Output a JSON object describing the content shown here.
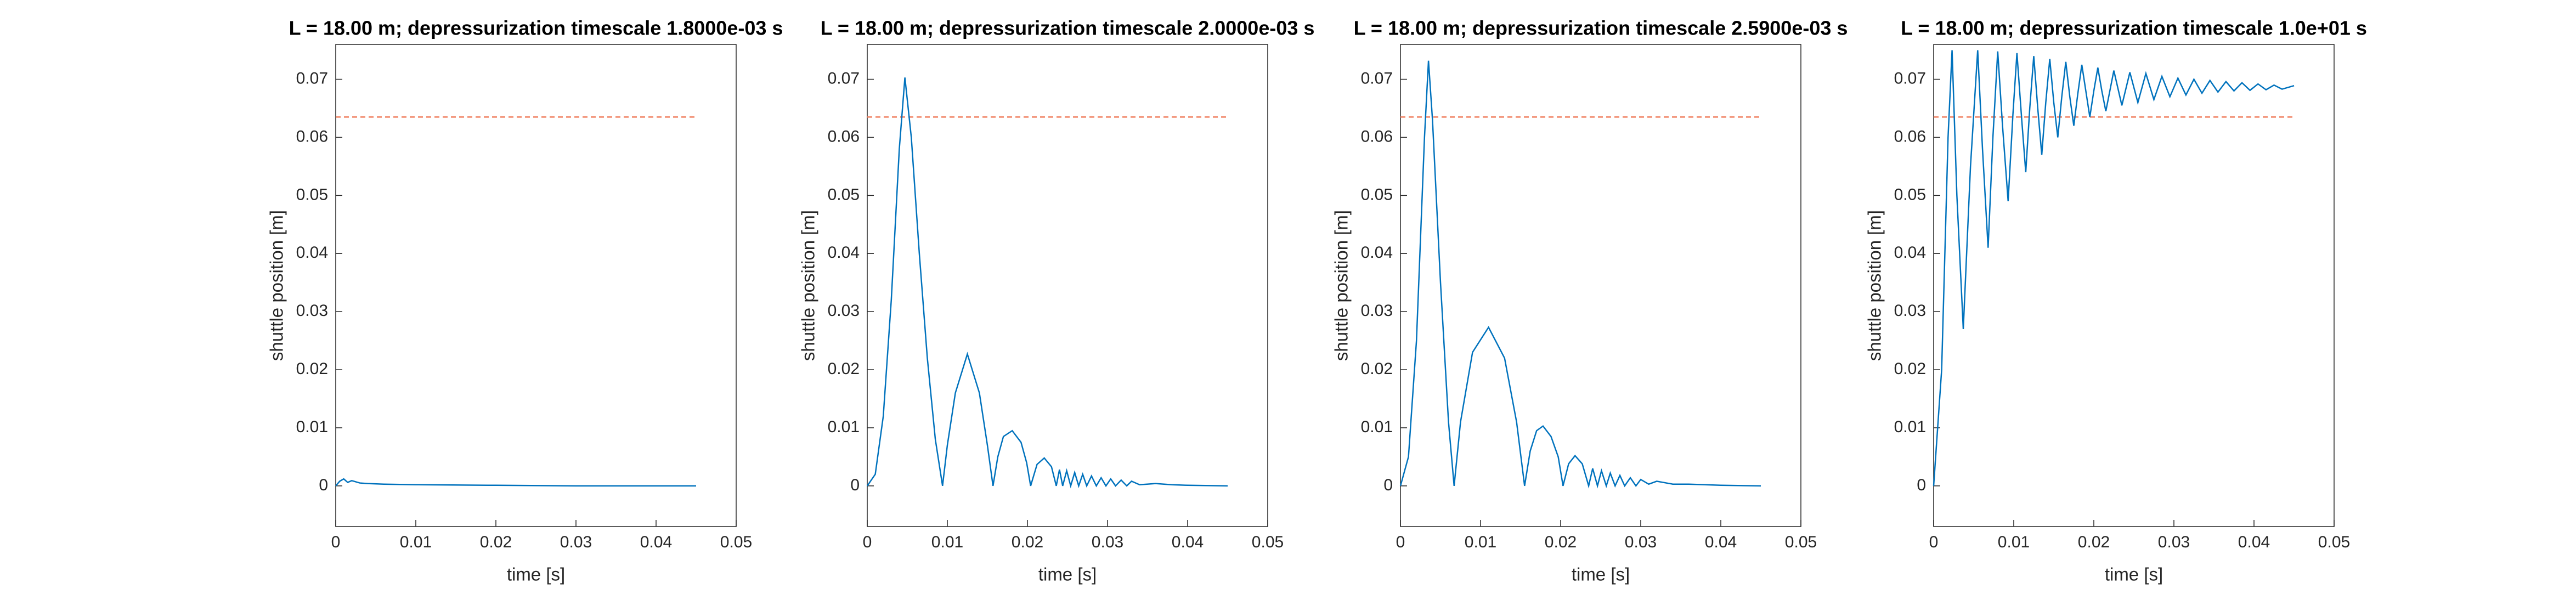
{
  "chart_data": [
    {
      "type": "line",
      "title": "L = 18.00 m; depressurization timescale 1.8000e-03 s",
      "xlabel": "time [s]",
      "ylabel": "shuttle position [m]",
      "color": "#0072bd",
      "threshold": 0.0635,
      "threshold_color": "#f08060",
      "xlim": [
        0,
        0.05
      ],
      "ylim": [
        -0.007,
        0.076
      ],
      "xticks": [
        0,
        0.01,
        0.02,
        0.03,
        0.04,
        0.05
      ],
      "yticks": [
        0,
        0.01,
        0.02,
        0.03,
        0.04,
        0.05,
        0.06,
        0.07
      ],
      "x": [
        0,
        0.0005,
        0.001,
        0.0015,
        0.002,
        0.003,
        0.004,
        0.006,
        0.01,
        0.02,
        0.03,
        0.045
      ],
      "values": [
        0,
        0.0008,
        0.0012,
        0.0006,
        0.0009,
        0.0005,
        0.0004,
        0.0003,
        0.0002,
        0.0001,
        0.0,
        0.0
      ]
    },
    {
      "type": "line",
      "title": "L = 18.00 m; depressurization timescale 2.0000e-03 s",
      "xlabel": "time [s]",
      "ylabel": "shuttle position [m]",
      "color": "#0072bd",
      "threshold": 0.0635,
      "threshold_color": "#f08060",
      "xlim": [
        0,
        0.05
      ],
      "ylim": [
        -0.007,
        0.076
      ],
      "xticks": [
        0,
        0.01,
        0.02,
        0.03,
        0.04,
        0.05
      ],
      "yticks": [
        0,
        0.01,
        0.02,
        0.03,
        0.04,
        0.05,
        0.06,
        0.07
      ],
      "x": [
        0,
        0.001,
        0.002,
        0.003,
        0.004,
        0.0047,
        0.0055,
        0.0065,
        0.0075,
        0.0085,
        0.0094,
        0.01,
        0.011,
        0.0125,
        0.014,
        0.015,
        0.0157,
        0.0163,
        0.017,
        0.0181,
        0.0192,
        0.0199,
        0.0204,
        0.0212,
        0.0221,
        0.023,
        0.0236,
        0.024,
        0.0244,
        0.0249,
        0.0254,
        0.0259,
        0.0264,
        0.0269,
        0.0274,
        0.028,
        0.0286,
        0.0292,
        0.0298,
        0.0304,
        0.031,
        0.0317,
        0.0324,
        0.033,
        0.034,
        0.036,
        0.038,
        0.04,
        0.045
      ],
      "values": [
        0,
        0.002,
        0.012,
        0.032,
        0.058,
        0.0703,
        0.06,
        0.04,
        0.022,
        0.008,
        0,
        0.007,
        0.016,
        0.0227,
        0.016,
        0.007,
        0,
        0.005,
        0.0085,
        0.0095,
        0.0075,
        0.004,
        0,
        0.0037,
        0.0048,
        0.0033,
        0,
        0.0028,
        0,
        0.0026,
        0,
        0.0023,
        0,
        0.002,
        0,
        0.0017,
        0,
        0.0014,
        0,
        0.0012,
        0,
        0.001,
        0,
        0.0008,
        0.0002,
        0.0004,
        0.0002,
        0.0001,
        0
      ]
    },
    {
      "type": "line",
      "title": "L = 18.00 m; depressurization timescale 2.5900e-03 s",
      "xlabel": "time [s]",
      "ylabel": "shuttle position [m]",
      "color": "#0072bd",
      "threshold": 0.0635,
      "threshold_color": "#f08060",
      "xlim": [
        0,
        0.05
      ],
      "ylim": [
        -0.007,
        0.076
      ],
      "xticks": [
        0,
        0.01,
        0.02,
        0.03,
        0.04,
        0.05
      ],
      "yticks": [
        0,
        0.01,
        0.02,
        0.03,
        0.04,
        0.05,
        0.06,
        0.07
      ],
      "x": [
        0,
        0.001,
        0.002,
        0.003,
        0.0035,
        0.004,
        0.005,
        0.006,
        0.0067,
        0.0075,
        0.009,
        0.011,
        0.013,
        0.0145,
        0.0155,
        0.0162,
        0.017,
        0.0178,
        0.0188,
        0.0197,
        0.0203,
        0.021,
        0.0218,
        0.0227,
        0.0235,
        0.024,
        0.0246,
        0.0251,
        0.0257,
        0.0262,
        0.0268,
        0.0274,
        0.028,
        0.0287,
        0.0294,
        0.03,
        0.031,
        0.032,
        0.034,
        0.036,
        0.04,
        0.045
      ],
      "values": [
        0,
        0.005,
        0.025,
        0.06,
        0.0732,
        0.063,
        0.035,
        0.011,
        0,
        0.011,
        0.023,
        0.0273,
        0.022,
        0.011,
        0,
        0.006,
        0.0095,
        0.0103,
        0.0085,
        0.005,
        0,
        0.0038,
        0.0052,
        0.0038,
        0,
        0.003,
        0,
        0.0026,
        0,
        0.0022,
        0,
        0.0018,
        0,
        0.0014,
        0,
        0.0011,
        0.0003,
        0.0008,
        0.0003,
        0.0003,
        0.0001,
        0
      ]
    },
    {
      "type": "line",
      "title": "L = 18.00 m; depressurization timescale 1.0e+01 s",
      "xlabel": "time [s]",
      "ylabel": "shuttle position [m]",
      "color": "#0072bd",
      "threshold": 0.0635,
      "threshold_color": "#f08060",
      "xlim": [
        0,
        0.05
      ],
      "ylim": [
        -0.007,
        0.076
      ],
      "xticks": [
        0,
        0.01,
        0.02,
        0.03,
        0.04,
        0.05
      ],
      "yticks": [
        0,
        0.01,
        0.02,
        0.03,
        0.04,
        0.05,
        0.06,
        0.07
      ],
      "x": [
        0,
        0.001,
        0.0018,
        0.0023,
        0.0029,
        0.0037,
        0.0046,
        0.0055,
        0.0061,
        0.0068,
        0.0074,
        0.008,
        0.0086,
        0.0093,
        0.0099,
        0.0104,
        0.011,
        0.0115,
        0.012,
        0.0125,
        0.013,
        0.0135,
        0.014,
        0.0145,
        0.015,
        0.0155,
        0.016,
        0.0165,
        0.017,
        0.0175,
        0.018,
        0.0185,
        0.019,
        0.0195,
        0.02,
        0.0205,
        0.021,
        0.0215,
        0.022,
        0.0225,
        0.0235,
        0.0245,
        0.0255,
        0.0265,
        0.0275,
        0.0285,
        0.0295,
        0.0305,
        0.0315,
        0.0325,
        0.0335,
        0.0345,
        0.0355,
        0.0365,
        0.0375,
        0.0385,
        0.0395,
        0.0405,
        0.0415,
        0.0425,
        0.0435,
        0.045
      ],
      "values": [
        0,
        0.02,
        0.06,
        0.075,
        0.05,
        0.027,
        0.055,
        0.075,
        0.058,
        0.041,
        0.06,
        0.0748,
        0.062,
        0.049,
        0.064,
        0.0745,
        0.063,
        0.054,
        0.065,
        0.074,
        0.065,
        0.057,
        0.066,
        0.0735,
        0.066,
        0.06,
        0.067,
        0.073,
        0.067,
        0.062,
        0.0675,
        0.0725,
        0.068,
        0.0635,
        0.068,
        0.072,
        0.068,
        0.0645,
        0.068,
        0.0715,
        0.0655,
        0.0712,
        0.066,
        0.071,
        0.0665,
        0.0705,
        0.067,
        0.0702,
        0.0673,
        0.07,
        0.0676,
        0.0698,
        0.0678,
        0.0696,
        0.068,
        0.0694,
        0.0681,
        0.0692,
        0.0682,
        0.069,
        0.0683,
        0.0689
      ]
    }
  ]
}
